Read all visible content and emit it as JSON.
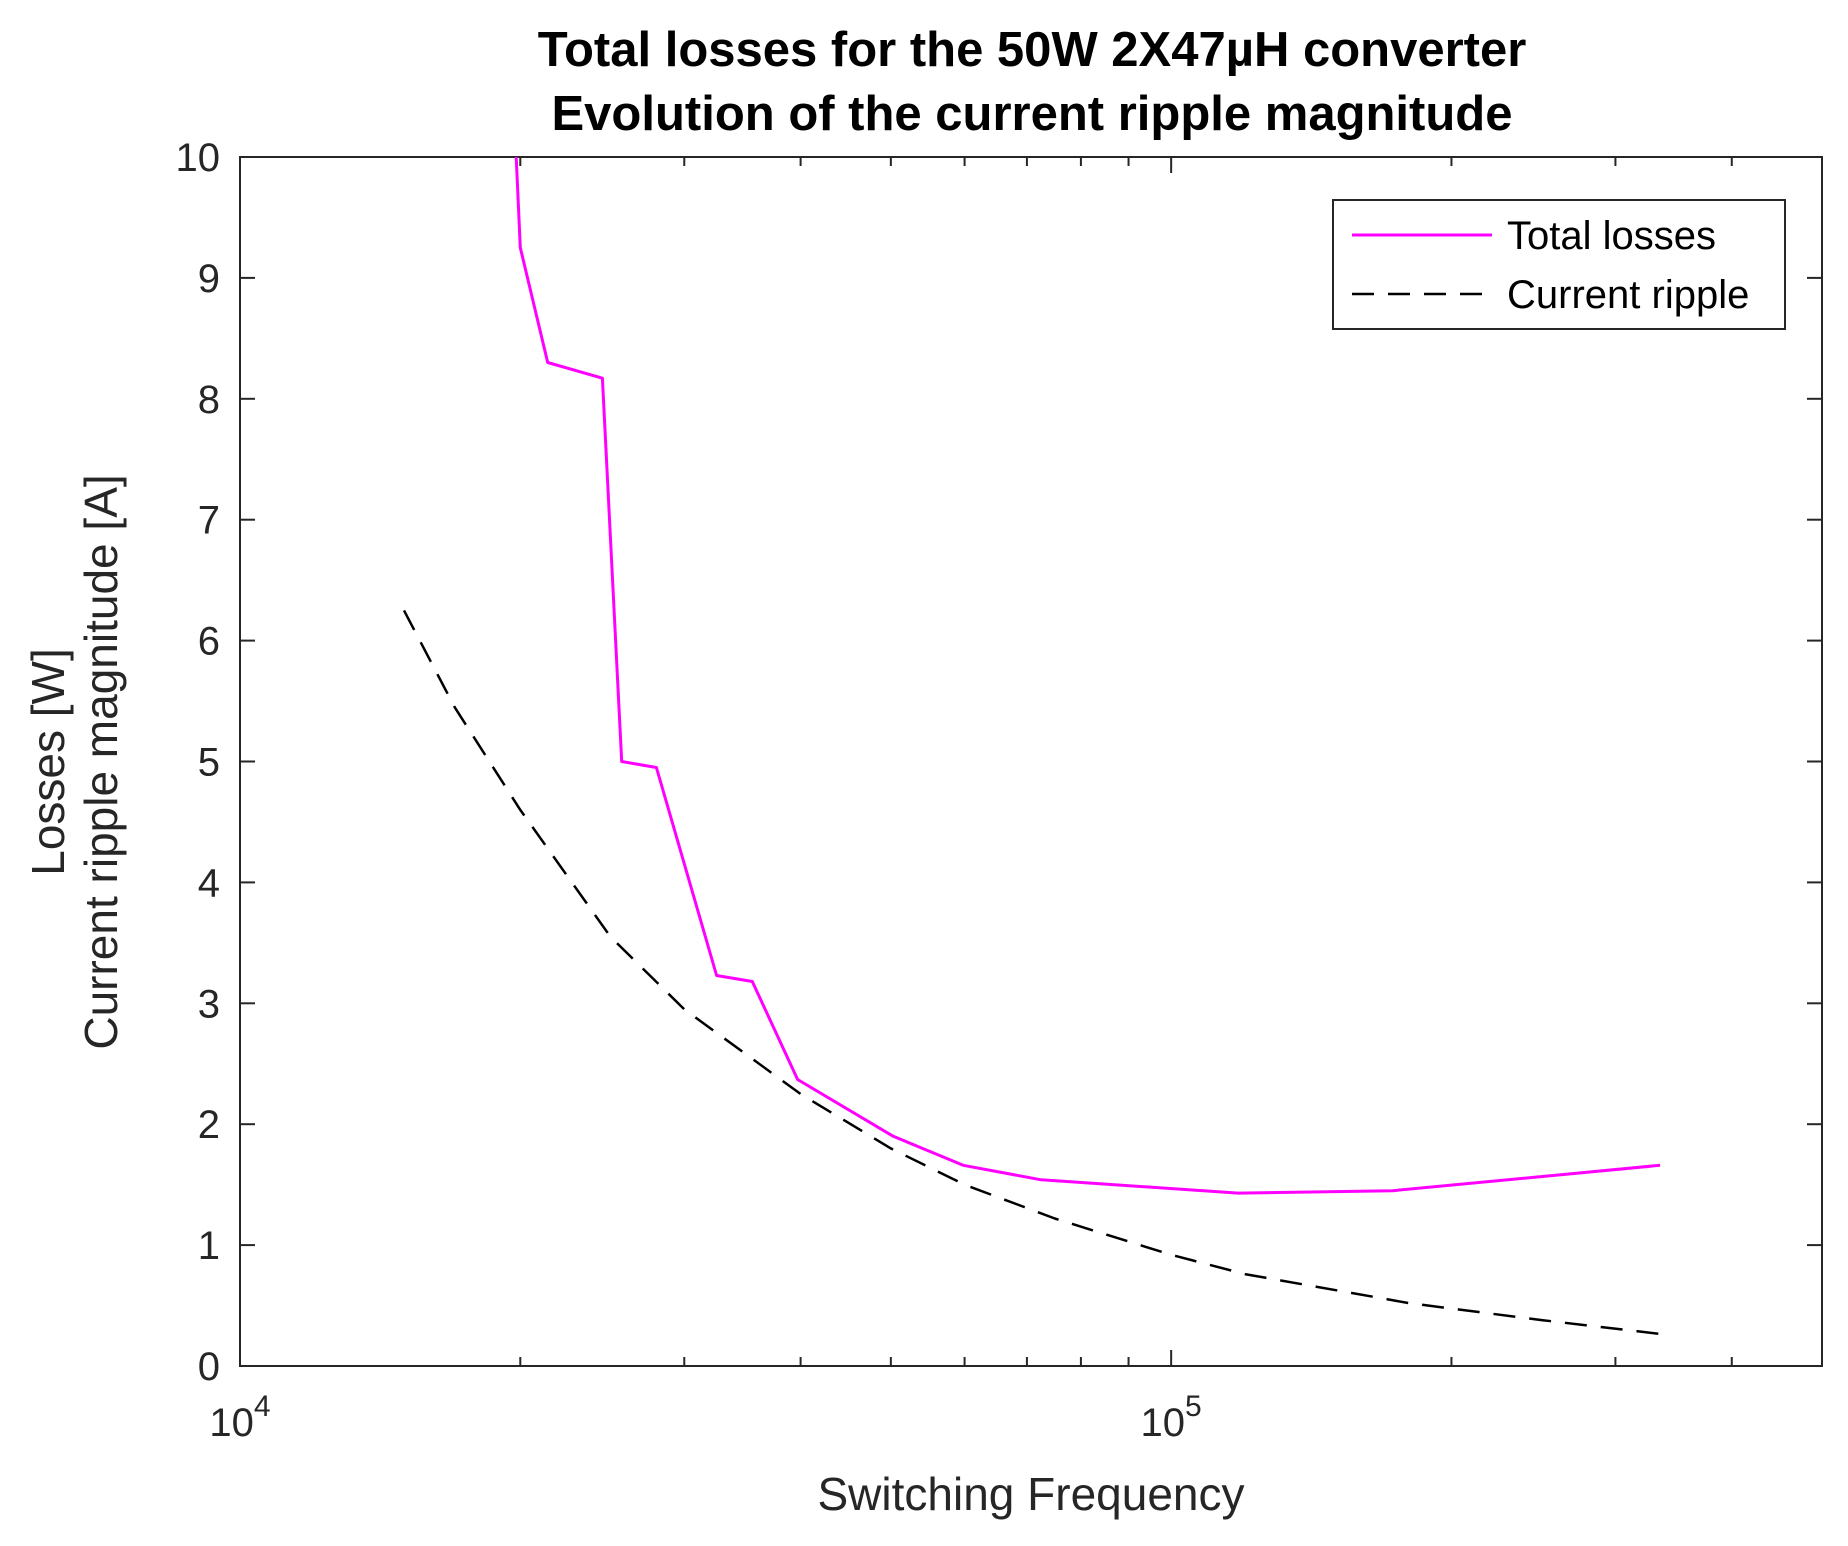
{
  "colors": {
    "losses": "#ff00ff",
    "ripple": "#000000",
    "axis": "#262626"
  },
  "chart_data": {
    "type": "line",
    "title": [
      "Total losses for the 50W 2X47µH converter",
      "Evolution of the current ripple magnitude"
    ],
    "xlabel": "Switching Frequency",
    "ylabel": [
      "Losses [W]",
      "Current ripple magnitude [A]"
    ],
    "xscale": "log",
    "xlim": [
      10000,
      500000
    ],
    "ylim": [
      0,
      10
    ],
    "yticks": [
      "0",
      "1",
      "2",
      "3",
      "4",
      "5",
      "6",
      "7",
      "8",
      "9",
      "10"
    ],
    "xticks": [
      {
        "value": 10000,
        "base": "10",
        "exp": "4"
      },
      {
        "value": 100000,
        "base": "10",
        "exp": "5"
      }
    ],
    "grid": false,
    "legend": {
      "placement": "top-right",
      "entries": [
        "Total losses",
        "Current ripple"
      ]
    },
    "series": [
      {
        "name": "Total losses",
        "style": "solid",
        "color": "#ff00ff",
        "x": [
          19800,
          20000,
          21400,
          24500,
          25700,
          28000,
          32500,
          35500,
          39700,
          50300,
          59800,
          72500,
          118000,
          173000,
          335000
        ],
        "y": [
          10.0,
          9.25,
          8.3,
          8.17,
          5.0,
          4.95,
          3.23,
          3.18,
          2.37,
          1.9,
          1.66,
          1.54,
          1.43,
          1.45,
          1.66
        ]
      },
      {
        "name": "Current ripple",
        "style": "dashed",
        "color": "#000000",
        "x": [
          15000,
          17000,
          20000,
          25000,
          30000,
          40000,
          50000,
          60000,
          75000,
          100000,
          120000,
          180000,
          250000,
          340000
        ],
        "y": [
          6.25,
          5.45,
          4.6,
          3.55,
          2.95,
          2.25,
          1.8,
          1.5,
          1.22,
          0.92,
          0.76,
          0.52,
          0.38,
          0.26
        ]
      }
    ]
  }
}
